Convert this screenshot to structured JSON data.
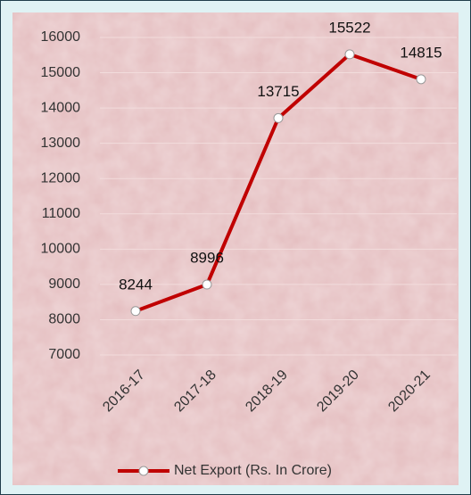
{
  "chart_data": {
    "type": "line",
    "categories": [
      "2016-17",
      "2017-18",
      "2018-19",
      "2019-20",
      "2020-21"
    ],
    "series": [
      {
        "name": "Net Export (Rs. In Crore)",
        "color": "#c00000",
        "values": [
          8244,
          8996,
          13715,
          15522,
          14815
        ]
      }
    ],
    "ylim": [
      7000,
      16000
    ],
    "yticks": [
      7000,
      8000,
      9000,
      10000,
      11000,
      12000,
      13000,
      14000,
      15000,
      16000
    ],
    "grid": true,
    "legend": "bottom"
  }
}
